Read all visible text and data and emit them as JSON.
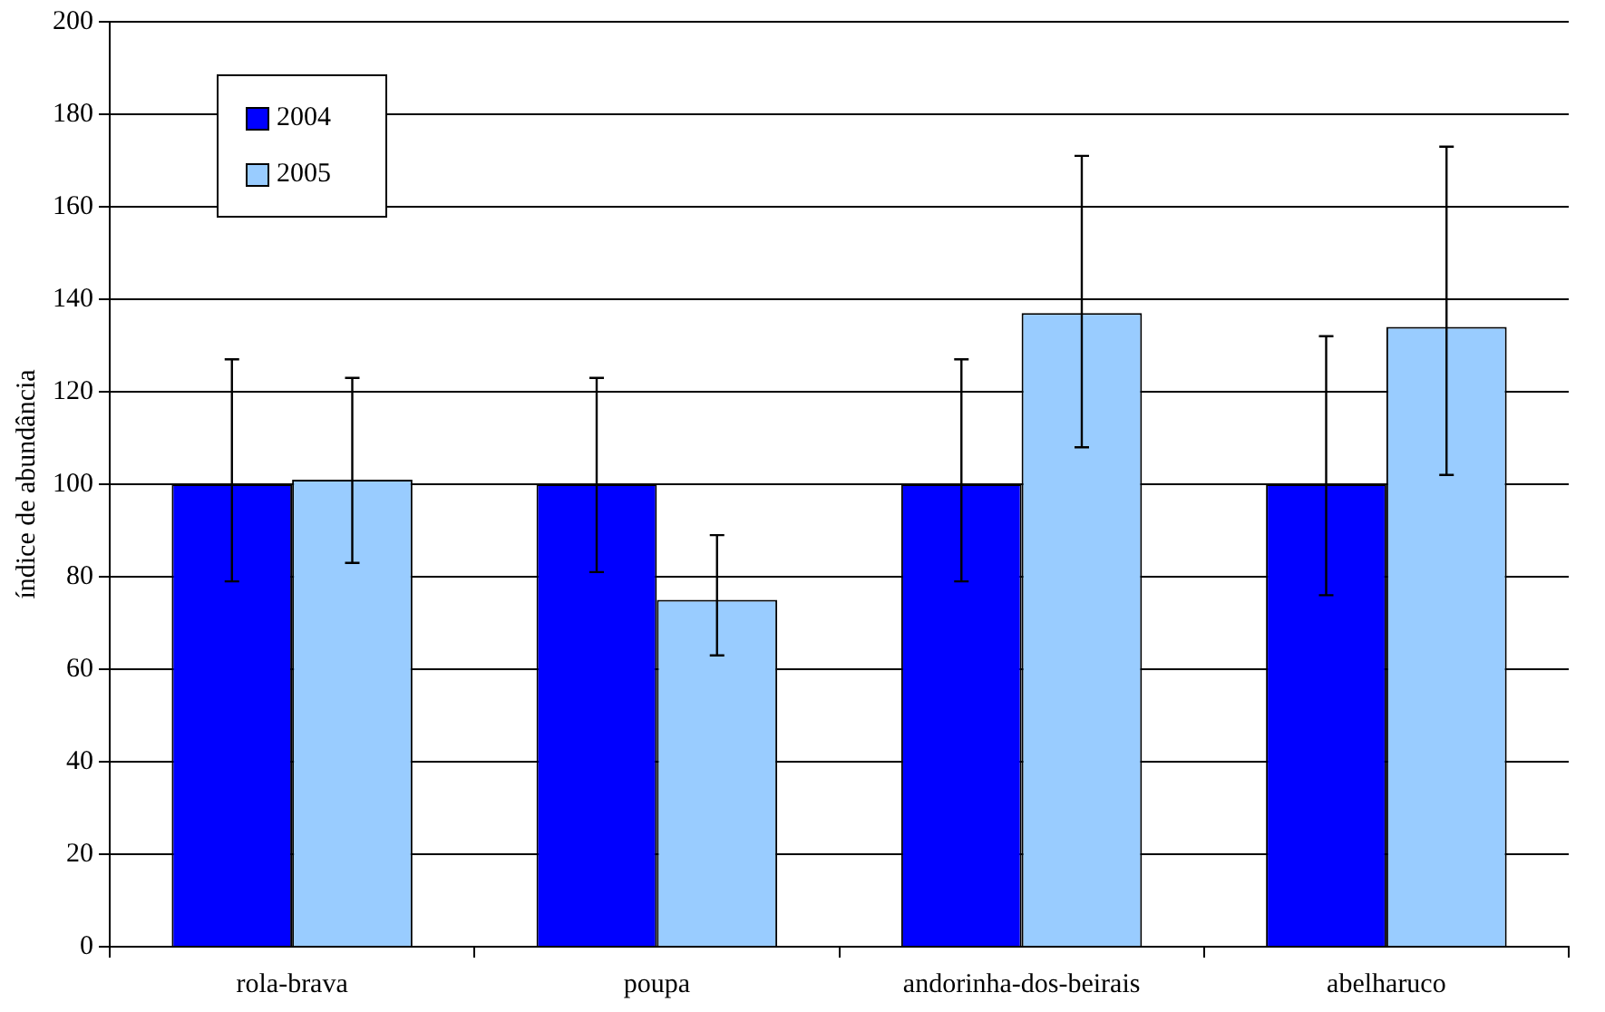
{
  "chart_data": {
    "type": "bar",
    "ylabel": "índice de abundância",
    "categories": [
      "rola-brava",
      "poupa",
      "andorinha-dos-beirais",
      "abelharuco"
    ],
    "series": [
      {
        "name": "2004",
        "color": "#0000ff",
        "values": [
          100,
          100,
          100,
          100
        ],
        "errors": [
          [
            79,
            127
          ],
          [
            81,
            123
          ],
          [
            79,
            127
          ],
          [
            76,
            132
          ]
        ]
      },
      {
        "name": "2005",
        "color": "#99ccff",
        "values": [
          101,
          75,
          137,
          134
        ],
        "errors": [
          [
            83,
            123
          ],
          [
            63,
            89
          ],
          [
            108,
            171
          ],
          [
            102,
            173
          ]
        ]
      }
    ],
    "ylim": [
      0,
      200
    ],
    "yticks": [
      0,
      20,
      40,
      60,
      80,
      100,
      120,
      140,
      160,
      180,
      200
    ],
    "grid": "y",
    "legend": "top left"
  }
}
